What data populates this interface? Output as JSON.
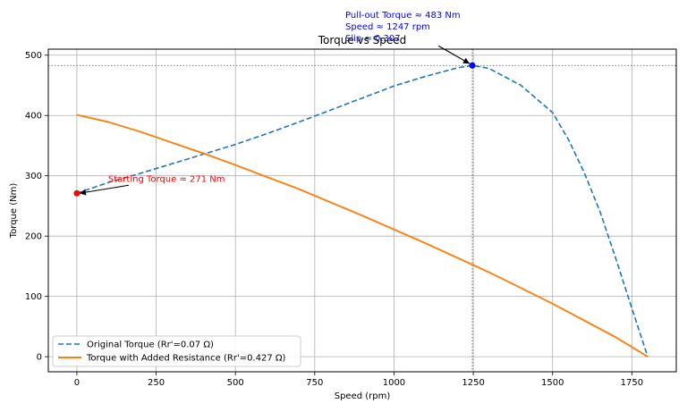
{
  "chart_data": {
    "type": "line",
    "title": "Torque vs Speed",
    "xlabel": "Speed (rpm)",
    "ylabel": "Torque (Nm)",
    "xlim": [
      -90,
      1890
    ],
    "ylim": [
      -25,
      510
    ],
    "xticks": [
      0,
      250,
      500,
      750,
      1000,
      1250,
      1500,
      1750
    ],
    "yticks": [
      0,
      100,
      200,
      300,
      400,
      500
    ],
    "grid": true,
    "legend_position": "lower-left",
    "series": [
      {
        "name": "Original Torque (Rr'=0.07 Ω)",
        "style": "dashed",
        "color": "#1f77b4",
        "x": [
          0,
          100,
          200,
          300,
          400,
          500,
          600,
          700,
          800,
          900,
          1000,
          1100,
          1200,
          1247,
          1300,
          1400,
          1500,
          1550,
          1600,
          1650,
          1700,
          1750,
          1800
        ],
        "y": [
          271,
          289,
          304,
          320,
          336,
          352,
          370,
          389,
          409,
          429,
          449,
          465,
          479,
          483,
          478,
          450,
          405,
          360,
          305,
          240,
          162,
          80,
          0
        ]
      },
      {
        "name": "Torque with Added Resistance (Rr'=0.427 Ω)",
        "style": "solid",
        "color": "#ff7f0e",
        "x": [
          0,
          100,
          200,
          300,
          400,
          500,
          600,
          700,
          800,
          900,
          1000,
          1100,
          1200,
          1300,
          1400,
          1500,
          1600,
          1700,
          1800
        ],
        "y": [
          401,
          389,
          373,
          355,
          337,
          318,
          298,
          278,
          256,
          234,
          211,
          188,
          164,
          140,
          114,
          88,
          60,
          32,
          0
        ]
      }
    ],
    "reference_lines": {
      "pullout_torque": 483,
      "pullout_speed": 1247
    },
    "annotations": {
      "pullout": {
        "lines": [
          "Pull-out Torque ≈ 483 Nm",
          "Speed ≈ 1247 rpm",
          "Slip ≈ 0.307"
        ],
        "point": [
          1247,
          483
        ],
        "color": "#0000ff"
      },
      "starting": {
        "text": "Starting Torque ≈ 271 Nm",
        "point": [
          0,
          271
        ],
        "color": "#ff0000"
      }
    }
  }
}
